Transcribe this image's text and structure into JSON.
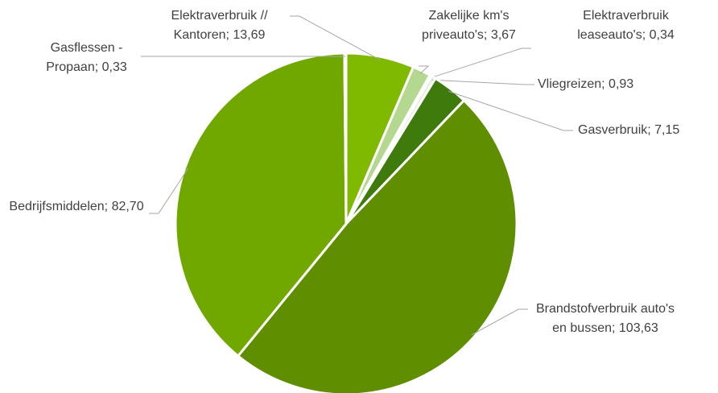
{
  "chart_data": {
    "type": "pie",
    "categories": [
      "Elektraverbruik // Kantoren",
      "Zakelijke km's priveauto's",
      "Elektraverbruik leaseauto's",
      "Vliegreizen",
      "Gasverbruik",
      "Brandstofverbruik auto's en bussen",
      "Bedrijfsmiddelen",
      "Gasflessen - Propaan"
    ],
    "values": [
      13.69,
      3.67,
      0.34,
      0.93,
      7.15,
      103.63,
      82.7,
      0.33
    ],
    "value_labels": [
      "13,69",
      "3,67",
      "0,34",
      "0,93",
      "7,15",
      "103,63",
      "82,70",
      "0,33"
    ],
    "label_separator": "; ",
    "colors": [
      "#7fba00",
      "#b4d88f",
      "#d5e8c4",
      "#e6f0dc",
      "#3f7a0c",
      "#5f8f00",
      "#70a800",
      "#9fcf5f"
    ]
  }
}
